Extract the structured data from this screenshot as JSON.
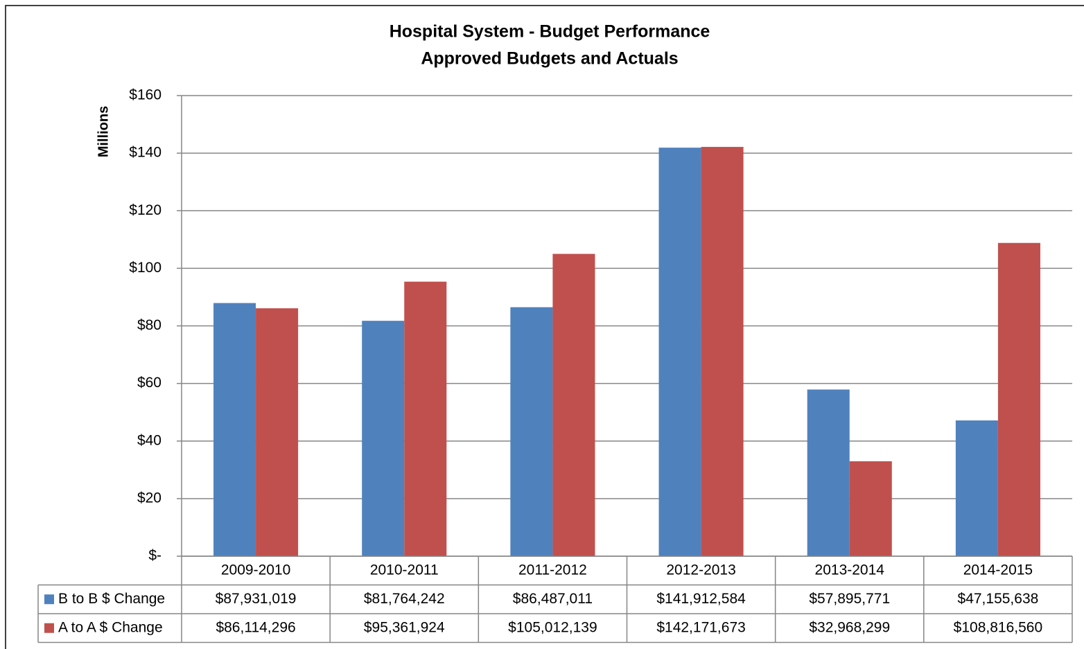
{
  "chart_data": {
    "type": "bar",
    "title": "Hospital System - Budget Performance",
    "subtitle": "Approved Budgets and Actuals",
    "y_label": "Millions",
    "categories": [
      "2009-2010",
      "2010-2011",
      "2011-2012",
      "2012-2013",
      "2013-2014",
      "2014-2015"
    ],
    "series": [
      {
        "name": "B to B $ Change",
        "color": "#4f81bd",
        "values": [
          87.931019,
          81.764242,
          86.487011,
          141.912584,
          57.895771,
          47.155638
        ],
        "value_labels": [
          "$87,931,019",
          "$81,764,242",
          "$86,487,011",
          "$141,912,584",
          "$57,895,771",
          "$47,155,638"
        ]
      },
      {
        "name": "A to A $ Change",
        "color": "#c0504d",
        "values": [
          86.114296,
          95.361924,
          105.012139,
          142.171673,
          32.968299,
          108.81656
        ],
        "value_labels": [
          "$86,114,296",
          "$95,361,924",
          "$105,012,139",
          "$142,171,673",
          "$32,968,299",
          "$108,816,560"
        ]
      }
    ],
    "ylim": [
      0,
      160
    ],
    "yticks": [
      {
        "value": 0,
        "label": "$-"
      },
      {
        "value": 20,
        "label": "$20"
      },
      {
        "value": 40,
        "label": "$40"
      },
      {
        "value": 60,
        "label": "$60"
      },
      {
        "value": 80,
        "label": "$80"
      },
      {
        "value": 100,
        "label": "$100"
      },
      {
        "value": 120,
        "label": "$120"
      },
      {
        "value": 140,
        "label": "$140"
      },
      {
        "value": 160,
        "label": "$160"
      }
    ],
    "grid": true
  }
}
